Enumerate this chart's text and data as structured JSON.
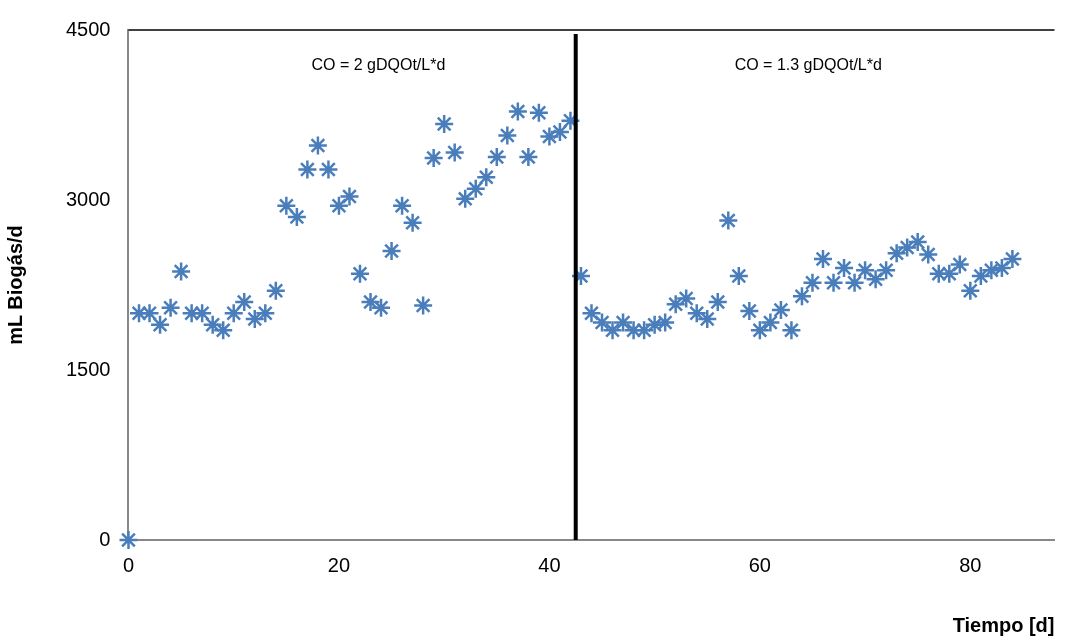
{
  "chart_data": {
    "type": "scatter",
    "xlabel": "Tiempo [d]",
    "ylabel": "mL Biogás/d",
    "xlim": [
      0,
      88
    ],
    "xticks": [
      0,
      20,
      40,
      60,
      80
    ],
    "ylim": [
      0,
      4500
    ],
    "yticks": [
      0,
      1500,
      3000,
      4500
    ],
    "grid": false,
    "legend": false,
    "marker": "cross",
    "annotations": [
      "CO = 2 gDQOt/L*d",
      "CO = 1.3 gDQOt/L*d"
    ],
    "ref_lines": [
      {
        "axis": "x",
        "value": 42.5,
        "color": "#000000"
      }
    ],
    "series": [
      {
        "color": "#4a7ebb",
        "x": [
          0,
          1,
          2,
          3,
          4,
          5,
          6,
          7,
          8,
          9,
          10,
          11,
          12,
          13,
          14,
          15,
          16,
          17,
          18,
          19,
          20,
          21,
          22,
          23,
          24,
          25,
          26,
          27,
          28,
          29,
          30,
          31,
          32,
          33,
          34,
          35,
          36,
          37,
          38,
          39,
          40,
          41,
          42,
          43,
          44,
          45,
          46,
          47,
          48,
          49,
          50,
          51,
          52,
          53,
          54,
          55,
          56,
          57,
          58,
          59,
          60,
          61,
          62,
          63,
          64,
          65,
          66,
          67,
          68,
          69,
          70,
          71,
          72,
          73,
          74,
          75,
          76,
          77,
          78,
          79,
          80,
          81,
          82,
          83,
          84
        ],
        "values": [
          0,
          2000,
          2000,
          1900,
          2050,
          2370,
          2000,
          2000,
          1900,
          1850,
          2000,
          2100,
          1950,
          2000,
          2200,
          2950,
          2850,
          3270,
          3480,
          3270,
          2950,
          3030,
          2350,
          2100,
          2050,
          2550,
          2950,
          2800,
          2070,
          3370,
          3670,
          3420,
          3010,
          3100,
          3200,
          3380,
          3570,
          3780,
          3380,
          3770,
          3560,
          3600,
          3700,
          2330,
          2000,
          1920,
          1850,
          1920,
          1850,
          1850,
          1900,
          1920,
          2080,
          2130,
          2000,
          1950,
          2100,
          2820,
          2330,
          2020,
          1850,
          1920,
          2030,
          1850,
          2150,
          2270,
          2480,
          2270,
          2400,
          2270,
          2380,
          2300,
          2380,
          2530,
          2580,
          2630,
          2520,
          2350,
          2350,
          2430,
          2200,
          2330,
          2380,
          2400,
          2480
        ]
      }
    ]
  }
}
